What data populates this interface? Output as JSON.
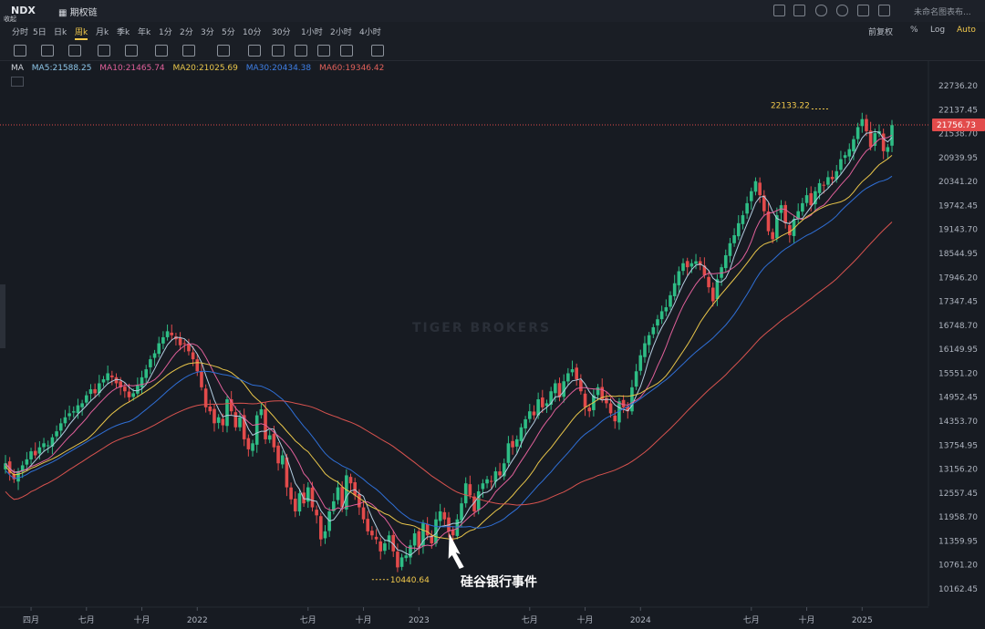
{
  "header": {
    "symbol": "NDX",
    "collapse_label": "收起",
    "options_chain_label": "期权链",
    "layout_label": "未命名图表布..."
  },
  "toolbar": {
    "periods": [
      "分时",
      "5日",
      "日k",
      "周k",
      "月k",
      "季k",
      "年k",
      "1分",
      "2分",
      "3分",
      "5分",
      "10分",
      "30分",
      "1小时",
      "2小时",
      "4小时"
    ],
    "active_period": "周k",
    "right": {
      "adjust": "前复权",
      "percent": "%",
      "log": "Log",
      "auto": "Auto"
    }
  },
  "indicators": {
    "name": "MA",
    "ma5": "MA5:21588.25",
    "ma10": "MA10:21465.74",
    "ma20": "MA20:21025.69",
    "ma30": "MA30:20434.38",
    "ma60": "MA60:19346.42"
  },
  "colors": {
    "up": "#2ebd85",
    "down": "#e24b4b",
    "ma5": "#b3cde0",
    "ma10": "#e0609a",
    "ma20": "#e8c54a",
    "ma30": "#2f6fd6",
    "ma60": "#d9534f",
    "price_line": "#e24b4b"
  },
  "watermark": "TIGER BROKERS",
  "chart_data": {
    "type": "candlestick",
    "y_ticks": [
      22736.2,
      22137.45,
      21538.7,
      20939.95,
      20341.2,
      19742.45,
      19143.7,
      18544.95,
      17946.2,
      17347.45,
      16748.7,
      16149.95,
      15551.2,
      14952.45,
      14353.7,
      13754.95,
      13156.2,
      12557.45,
      11958.7,
      11359.95,
      10761.2,
      10162.45
    ],
    "y_tick_labels": [
      "22736.20",
      "22137.45",
      "21538.70",
      "20939.95",
      "20341.20",
      "19742.45",
      "19143.70",
      "18544.95",
      "17946.20",
      "17347.45",
      "16748.70",
      "16149.95",
      "15551.20",
      "14952.45",
      "14353.70",
      "13754.95",
      "13156.20",
      "12557.45",
      "11958.70",
      "11359.95",
      "10761.20",
      "10162.45"
    ],
    "x_ticks": [
      "四月",
      "七月",
      "十月",
      "2022",
      "七月",
      "十月",
      "2023",
      "七月",
      "十月",
      "2024",
      "七月",
      "十月",
      "2025"
    ],
    "x_tick_weeks": [
      6,
      19,
      32,
      45,
      71,
      84,
      97,
      123,
      136,
      149,
      175,
      188,
      201
    ],
    "current_price": 21756.73,
    "current_price_label": "21756.73",
    "high_label": "22133.22",
    "high_value": 22133.22,
    "high_week": 193,
    "low_label": "10440.64",
    "low_value": 10440.64,
    "low_week": 86,
    "annotation": {
      "text": "硅谷银行事件",
      "week": 105
    },
    "weekly_close": [
      13300,
      13050,
      12900,
      13100,
      13250,
      13400,
      13600,
      13500,
      13700,
      13800,
      13750,
      13950,
      14100,
      14300,
      14450,
      14550,
      14600,
      14750,
      14800,
      15000,
      15150,
      15050,
      15300,
      15400,
      15550,
      15450,
      15300,
      15200,
      15100,
      14950,
      15050,
      15250,
      15450,
      15650,
      15900,
      16050,
      16300,
      16450,
      16600,
      16500,
      16400,
      16250,
      16300,
      16100,
      15900,
      15600,
      15200,
      14700,
      14600,
      14300,
      14450,
      14250,
      14900,
      14600,
      14200,
      14450,
      13900,
      13650,
      13800,
      14500,
      14650,
      13900,
      14000,
      13700,
      13300,
      13500,
      12700,
      12400,
      12100,
      12550,
      12300,
      12700,
      12200,
      12000,
      11400,
      11600,
      12100,
      12350,
      12700,
      12200,
      13000,
      12800,
      12500,
      12200,
      11900,
      11600,
      11500,
      11400,
      11100,
      11300,
      11500,
      11100,
      10700,
      10950,
      11000,
      11250,
      11550,
      11200,
      11800,
      11500,
      11300,
      11900,
      12100,
      11900,
      11600,
      11500,
      11900,
      12300,
      12800,
      12500,
      12100,
      12600,
      12800,
      12900,
      12850,
      13100,
      13000,
      13300,
      13800,
      13700,
      13900,
      14200,
      14400,
      14600,
      14500,
      14900,
      14700,
      14800,
      15100,
      15300,
      14950,
      15350,
      15550,
      15650,
      15400,
      15100,
      14700,
      14600,
      15000,
      15200,
      14900,
      14800,
      14550,
      14350,
      14850,
      14700,
      14600,
      15200,
      15600,
      16000,
      16300,
      16500,
      16700,
      16900,
      17100,
      17200,
      17500,
      17800,
      18100,
      18300,
      18200,
      18300,
      18350,
      18250,
      18000,
      17700,
      17350,
      17900,
      18200,
      18500,
      18800,
      19000,
      19300,
      19500,
      19800,
      20100,
      20350,
      20000,
      19600,
      19100,
      18900,
      19500,
      19750,
      19300,
      19000,
      19400,
      19600,
      19800,
      20000,
      19750,
      20100,
      20300,
      20250,
      20450,
      20400,
      20600,
      20900,
      21000,
      21150,
      21400,
      21700,
      21900,
      21600,
      21200,
      21550,
      21600,
      21100,
      21200,
      21750
    ],
    "ma_series": [
      {
        "name": "MA5",
        "period": 5
      },
      {
        "name": "MA10",
        "period": 10
      },
      {
        "name": "MA20",
        "period": 20
      },
      {
        "name": "MA30",
        "period": 30
      },
      {
        "name": "MA60",
        "period": 60
      }
    ]
  }
}
